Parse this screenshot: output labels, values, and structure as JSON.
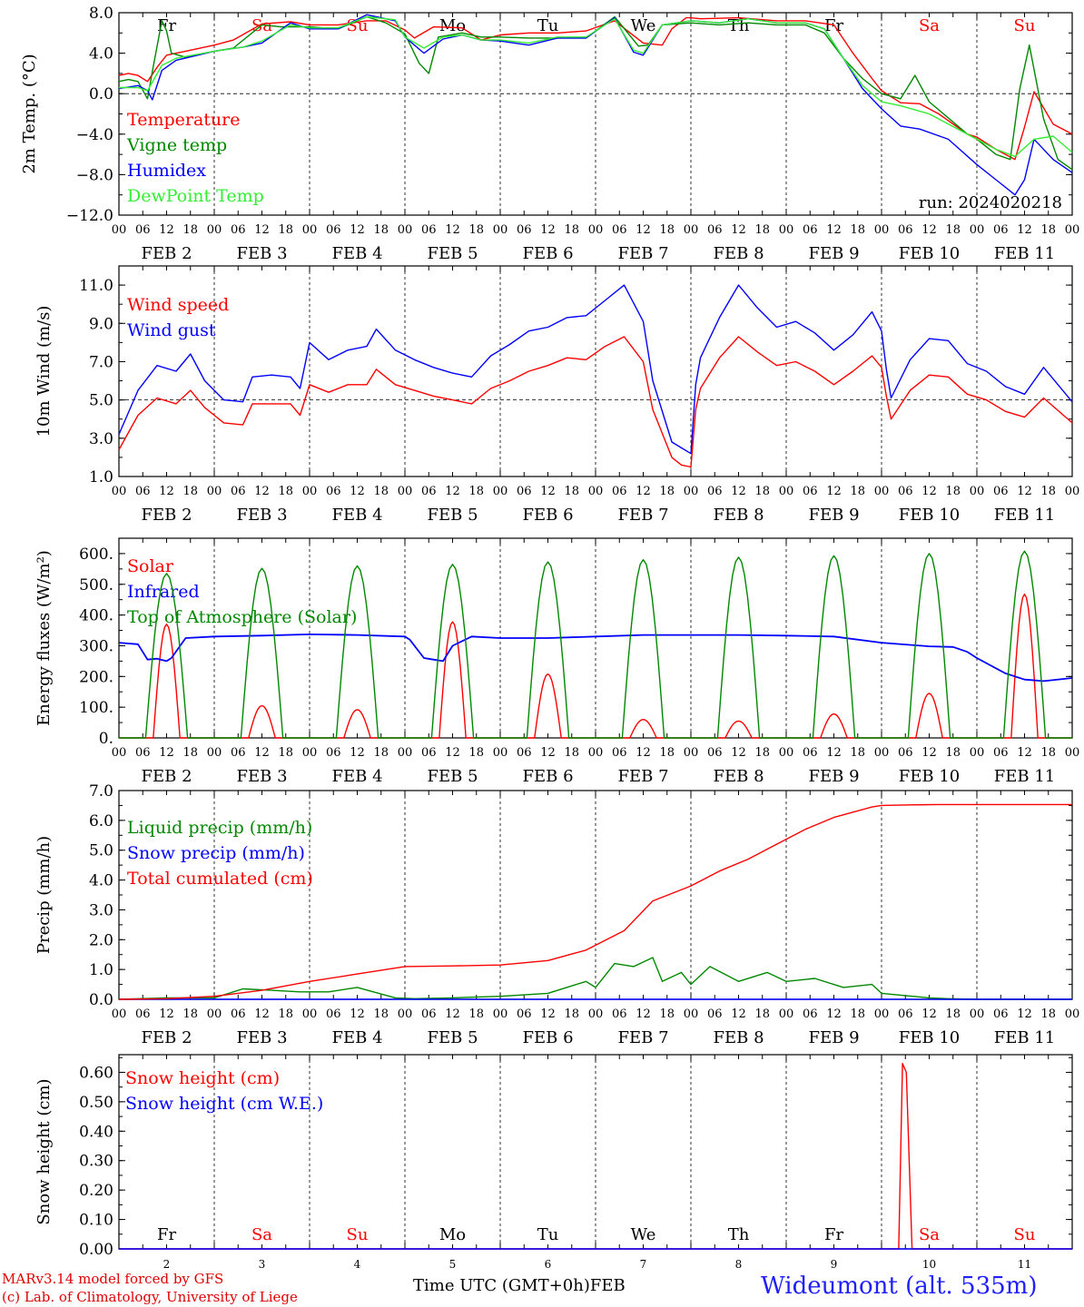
{
  "meta": {
    "run": "run: 2024020218",
    "x_axis_title": "Time UTC (GMT+0h)",
    "month_label": "FEB",
    "credit_line1": "MARv3.14 model forced by GFS",
    "credit_line2": "(c) Lab. of Climatology, University of Liege",
    "station": "Wideumont (alt. 535m)",
    "hour_labels": [
      "00",
      "06",
      "12",
      "18"
    ],
    "final_hour_label": "00",
    "date_labels": [
      "FEB  2",
      "FEB  3",
      "FEB  4",
      "FEB  5",
      "FEB  6",
      "FEB  7",
      "FEB  8",
      "FEB  9",
      "FEB 10",
      "FEB 11"
    ],
    "day_numbers": [
      "2",
      "3",
      "4",
      "5",
      "6",
      "7",
      "8",
      "9",
      "10",
      "11"
    ],
    "weekdays": [
      "Fr",
      "Sa",
      "Su",
      "Mo",
      "Tu",
      "We",
      "Th",
      "Fr",
      "Sa",
      "Su"
    ],
    "weekday_colors": [
      "#000000",
      "#ff0000",
      "#ff0000",
      "#000000",
      "#000000",
      "#000000",
      "#000000",
      "#000000",
      "#ff0000",
      "#ff0000"
    ]
  },
  "chart_data": [
    {
      "type": "line",
      "ylabel": "2m Temp. (°C)",
      "ylim": [
        -12,
        8
      ],
      "yticks": [
        "8.0",
        "4.0",
        "0.0",
        "−4.0",
        "−8.0",
        "−12.0"
      ],
      "ytick_values": [
        8,
        4,
        0,
        -4,
        -8,
        -12
      ],
      "reference_line": 0,
      "x_days": [
        0,
        10
      ],
      "series": [
        {
          "name": "Temperature",
          "color": "#ff0000",
          "x": [
            0,
            0.1,
            0.2,
            0.3,
            0.4,
            0.5,
            0.7,
            1,
            1.2,
            1.5,
            1.8,
            2,
            2.3,
            2.6,
            2.8,
            3,
            3.1,
            3.3,
            3.6,
            3.8,
            4,
            4.3,
            4.6,
            4.9,
            5.2,
            5.5,
            5.7,
            5.8,
            5.95,
            6,
            6.1,
            6.5,
            6.9,
            7.2,
            7.5,
            7.7,
            7.9,
            8,
            8.2,
            8.4,
            8.6,
            8.9,
            9,
            9.2,
            9.4,
            9.5,
            9.6,
            9.8,
            10
          ],
          "y": [
            1.8,
            2,
            1.8,
            1.2,
            2.6,
            3.8,
            4.2,
            4.8,
            5.3,
            6.9,
            7.1,
            6.8,
            6.8,
            7.2,
            7.2,
            6.3,
            5.5,
            6.6,
            6.5,
            5.3,
            5.8,
            6,
            6,
            6.2,
            7.2,
            5,
            4.8,
            6.4,
            7.5,
            7.5,
            7.4,
            7.5,
            7.2,
            7.2,
            6.8,
            4,
            1.5,
            0.3,
            -0.9,
            -1,
            -2,
            -4,
            -4.3,
            -5.5,
            -6.5,
            -3.3,
            0.2,
            -3,
            -4
          ]
        },
        {
          "name": "Vigne temp",
          "color": "#008800",
          "x": [
            0,
            0.1,
            0.2,
            0.3,
            0.35,
            0.45,
            0.5,
            0.55,
            0.7,
            1,
            1.2,
            1.5,
            1.7,
            2,
            2.3,
            2.6,
            2.8,
            3,
            3.15,
            3.25,
            3.35,
            3.6,
            3.8,
            4,
            4.3,
            4.6,
            4.9,
            5.2,
            5.45,
            5.55,
            5.7,
            6,
            6.3,
            6.6,
            6.9,
            7.2,
            7.4,
            7.6,
            7.8,
            8,
            8.2,
            8.35,
            8.5,
            8.65,
            8.9,
            9,
            9.2,
            9.35,
            9.45,
            9.55,
            9.7,
            9.85,
            10
          ],
          "y": [
            1.2,
            1.4,
            1.2,
            -0.5,
            2.2,
            7.2,
            6.2,
            4,
            3.6,
            4.2,
            4.5,
            6.8,
            6.6,
            6.6,
            6.4,
            7.6,
            7,
            5.9,
            3,
            2,
            5.6,
            6,
            5.6,
            5.6,
            5.5,
            5.5,
            5.5,
            7.6,
            4.7,
            4.8,
            6.8,
            7,
            6.8,
            7,
            6.8,
            6.8,
            6,
            3.5,
            1.5,
            0,
            -0.5,
            1.8,
            -0.8,
            -2,
            -4,
            -4.5,
            -6,
            -6.5,
            0.5,
            4.8,
            -2.5,
            -6.5,
            -7.5
          ]
        },
        {
          "name": "Humidex",
          "color": "#0000ff",
          "x": [
            0,
            0.2,
            0.3,
            0.35,
            0.45,
            0.6,
            1,
            1.3,
            1.5,
            1.8,
            2,
            2.3,
            2.6,
            2.9,
            3,
            3.2,
            3.4,
            3.6,
            3.8,
            4,
            4.3,
            4.6,
            4.9,
            5.2,
            5.4,
            5.5,
            5.7,
            6,
            6.3,
            6.6,
            6.9,
            7.2,
            7.4,
            7.6,
            7.8,
            8,
            8.2,
            8.4,
            8.7,
            9,
            9.2,
            9.4,
            9.5,
            9.6,
            9.8,
            10
          ],
          "y": [
            0.5,
            0.8,
            0.3,
            -0.6,
            2.3,
            3.3,
            4.2,
            4.6,
            5,
            7,
            6.4,
            6.4,
            7.8,
            7.2,
            5.6,
            4,
            5.4,
            5.8,
            5.3,
            5.2,
            4.8,
            5.5,
            5.5,
            7.5,
            4.1,
            3.8,
            6.8,
            7.2,
            7,
            7.4,
            7,
            7,
            6.4,
            3.5,
            0.5,
            -1.5,
            -3.2,
            -3.5,
            -4.5,
            -7,
            -8.5,
            -10,
            -8.5,
            -4.5,
            -6.5,
            -7.8
          ]
        },
        {
          "name": "DewPoint Temp",
          "color": "#33ee33",
          "x": [
            0,
            0.2,
            0.3,
            0.45,
            0.6,
            1,
            1.3,
            1.5,
            1.8,
            2,
            2.3,
            2.6,
            2.9,
            3,
            3.2,
            3.4,
            3.6,
            3.8,
            4,
            4.3,
            4.6,
            4.9,
            5.2,
            5.4,
            5.5,
            5.7,
            6,
            6.3,
            6.6,
            6.9,
            7.2,
            7.4,
            7.6,
            7.8,
            8,
            8.2,
            8.5,
            8.8,
            9,
            9.2,
            9.4,
            9.6,
            9.8,
            10
          ],
          "y": [
            0.6,
            0.6,
            0.3,
            2.8,
            3.5,
            4.2,
            4.6,
            5.2,
            6.8,
            6.5,
            6.5,
            7.6,
            7.3,
            5.6,
            4.5,
            5.6,
            5.8,
            5.3,
            5.3,
            5,
            5.6,
            5.6,
            7.4,
            4.3,
            4,
            6.8,
            7.2,
            7,
            7.4,
            7,
            7,
            6.4,
            3.5,
            0.8,
            -0.8,
            -1.2,
            -2,
            -3.5,
            -4.5,
            -5.5,
            -6.2,
            -4.5,
            -4.2,
            -5.8
          ]
        }
      ]
    },
    {
      "type": "line",
      "ylabel": "10m Wind (m/s)",
      "ylim": [
        1,
        12
      ],
      "yticks": [
        "11.0",
        "9.0",
        "7.0",
        "5.0",
        "3.0",
        "1.0"
      ],
      "ytick_values": [
        11,
        9,
        7,
        5,
        3,
        1
      ],
      "reference_line": 5,
      "series": [
        {
          "name": "Wind speed",
          "color": "#ff0000",
          "x": [
            0,
            0.2,
            0.4,
            0.6,
            0.75,
            0.9,
            1,
            1.1,
            1.3,
            1.4,
            1.6,
            1.8,
            1.9,
            2,
            2.2,
            2.4,
            2.6,
            2.7,
            2.9,
            3.1,
            3.3,
            3.5,
            3.7,
            3.9,
            4.1,
            4.3,
            4.5,
            4.7,
            4.9,
            5.1,
            5.3,
            5.5,
            5.6,
            5.8,
            5.9,
            6,
            6.05,
            6.1,
            6.3,
            6.5,
            6.7,
            6.9,
            7.1,
            7.3,
            7.5,
            7.7,
            7.9,
            8,
            8.05,
            8.1,
            8.3,
            8.5,
            8.7,
            8.9,
            9.1,
            9.3,
            9.5,
            9.7,
            10
          ],
          "y": [
            2.4,
            4.2,
            5.1,
            4.8,
            5.5,
            4.6,
            4.2,
            3.8,
            3.7,
            4.8,
            4.8,
            4.8,
            4.2,
            5.8,
            5.4,
            5.8,
            5.8,
            6.6,
            5.8,
            5.5,
            5.2,
            5,
            4.8,
            5.6,
            6,
            6.5,
            6.8,
            7.2,
            7.1,
            7.8,
            8.3,
            7,
            4.5,
            2,
            1.6,
            1.5,
            4.5,
            5.6,
            7.2,
            8.3,
            7.5,
            6.8,
            7,
            6.5,
            5.8,
            6.5,
            7.3,
            6.7,
            5.2,
            4,
            5.5,
            6.3,
            6.2,
            5.3,
            5,
            4.4,
            4.1,
            5.1,
            3.8
          ]
        },
        {
          "name": "Wind gust",
          "color": "#0000ff",
          "x": [
            0,
            0.2,
            0.4,
            0.6,
            0.75,
            0.9,
            1,
            1.1,
            1.3,
            1.4,
            1.6,
            1.8,
            1.9,
            2,
            2.2,
            2.4,
            2.6,
            2.7,
            2.9,
            3.1,
            3.3,
            3.5,
            3.7,
            3.9,
            4.1,
            4.3,
            4.5,
            4.7,
            4.9,
            5.1,
            5.3,
            5.5,
            5.6,
            5.8,
            5.9,
            6,
            6.05,
            6.1,
            6.3,
            6.5,
            6.7,
            6.9,
            7.1,
            7.3,
            7.5,
            7.7,
            7.9,
            8,
            8.05,
            8.1,
            8.3,
            8.5,
            8.7,
            8.9,
            9.1,
            9.3,
            9.5,
            9.7,
            10
          ],
          "y": [
            3.2,
            5.5,
            6.8,
            6.5,
            7.4,
            6,
            5.5,
            5,
            4.9,
            6.2,
            6.3,
            6.2,
            5.6,
            8,
            7.1,
            7.6,
            7.8,
            8.7,
            7.6,
            7.1,
            6.7,
            6.4,
            6.2,
            7.3,
            7.9,
            8.6,
            8.8,
            9.3,
            9.4,
            10.2,
            11,
            9.1,
            6,
            2.8,
            2.5,
            2.2,
            5.8,
            7.2,
            9.3,
            11,
            9.8,
            8.8,
            9.1,
            8.5,
            7.6,
            8.4,
            9.6,
            8.6,
            6.6,
            5.1,
            7.1,
            8.2,
            8.1,
            6.9,
            6.5,
            5.7,
            5.3,
            6.7,
            4.9
          ]
        }
      ]
    },
    {
      "type": "line",
      "ylabel": "Energy fluxes (W/m²)",
      "ylim": [
        0,
        650
      ],
      "yticks": [
        "600.",
        "500.",
        "400.",
        "300.",
        "200.",
        "100.",
        "0."
      ],
      "ytick_values": [
        600,
        500,
        400,
        300,
        200,
        100,
        0
      ],
      "series": [
        {
          "name": "Solar",
          "color": "#ff0000",
          "shape": "daily-peaks",
          "peaks": [
            370,
            105,
            92,
            378,
            208,
            60,
            55,
            78,
            145,
            468
          ]
        },
        {
          "name": "Infrared",
          "color": "#0000ff",
          "x": [
            0,
            0.2,
            0.3,
            0.4,
            0.5,
            0.55,
            0.7,
            1,
            1.5,
            2,
            2.5,
            3,
            3.05,
            3.2,
            3.3,
            3.4,
            3.5,
            3.7,
            4,
            4.5,
            5,
            5.5,
            6,
            6.5,
            7,
            7.5,
            8,
            8.5,
            8.75,
            8.9,
            9,
            9.3,
            9.5,
            9.7,
            10
          ],
          "y": [
            310,
            305,
            255,
            258,
            250,
            260,
            325,
            330,
            333,
            337,
            335,
            330,
            320,
            260,
            255,
            250,
            300,
            330,
            325,
            325,
            330,
            335,
            335,
            335,
            333,
            330,
            310,
            298,
            296,
            280,
            260,
            210,
            190,
            185,
            195
          ]
        },
        {
          "name": "Top of Atmosphere (Solar)",
          "color": "#008800",
          "shape": "daily-peaks",
          "peaks": [
            535,
            552,
            560,
            565,
            573,
            580,
            588,
            593,
            600,
            608
          ]
        }
      ]
    },
    {
      "type": "line",
      "ylabel": "Precip (mm/h)",
      "ylim": [
        0,
        7
      ],
      "yticks": [
        "7.0",
        "6.0",
        "5.0",
        "4.0",
        "3.0",
        "2.0",
        "1.0",
        "0.0"
      ],
      "ytick_values": [
        7,
        6,
        5,
        4,
        3,
        2,
        1,
        0
      ],
      "series": [
        {
          "name": "Liquid precip (mm/h)",
          "color": "#008800",
          "x": [
            0,
            0.5,
            1,
            1.3,
            1.6,
            1.9,
            2.2,
            2.5,
            2.9,
            3.1,
            3.5,
            4,
            4.5,
            4.9,
            5,
            5.2,
            5.4,
            5.6,
            5.7,
            5.9,
            6,
            6.2,
            6.5,
            6.8,
            7,
            7.3,
            7.6,
            7.9,
            8,
            8.4,
            8.5,
            8.7,
            9,
            9.5,
            10
          ],
          "y": [
            0,
            0.05,
            0.05,
            0.35,
            0.3,
            0.25,
            0.25,
            0.4,
            0.05,
            0.02,
            0.05,
            0.1,
            0.2,
            0.6,
            0.4,
            1.2,
            1.1,
            1.4,
            0.6,
            0.9,
            0.5,
            1.1,
            0.6,
            0.9,
            0.6,
            0.7,
            0.4,
            0.5,
            0.2,
            0.08,
            0.05,
            0.02,
            0,
            0,
            0
          ]
        },
        {
          "name": "Snow precip (mm/h)",
          "color": "#0000ff",
          "x": [
            0,
            10
          ],
          "y": [
            0,
            0
          ]
        },
        {
          "name": "Total cumulated (cm)",
          "color": "#ff0000",
          "x": [
            0,
            0.5,
            1,
            1.5,
            2,
            2.5,
            3,
            3.5,
            4,
            4.5,
            4.9,
            5.3,
            5.6,
            6,
            6.3,
            6.6,
            6.9,
            7.2,
            7.5,
            7.9,
            8,
            8.3,
            8.6,
            9,
            10
          ],
          "y": [
            0,
            0.02,
            0.1,
            0.3,
            0.6,
            0.85,
            1.1,
            1.12,
            1.15,
            1.3,
            1.65,
            2.3,
            3.3,
            3.8,
            4.3,
            4.7,
            5.2,
            5.7,
            6.1,
            6.45,
            6.5,
            6.52,
            6.53,
            6.53,
            6.53
          ]
        }
      ]
    },
    {
      "type": "line",
      "ylabel": "Snow height (cm)",
      "ylim": [
        0,
        0.66
      ],
      "yticks": [
        "0.60",
        "0.50",
        "0.40",
        "0.30",
        "0.20",
        "0.10",
        "0.00"
      ],
      "ytick_values": [
        0.6,
        0.5,
        0.4,
        0.3,
        0.2,
        0.1,
        0
      ],
      "series": [
        {
          "name": "Snow height (cm)",
          "color": "#ff0000",
          "x": [
            0,
            8.18,
            8.22,
            8.26,
            8.32,
            8.36,
            10
          ],
          "y": [
            0,
            0,
            0.63,
            0.6,
            0,
            0,
            0
          ]
        },
        {
          "name": "Snow height (cm W.E.)",
          "color": "#0000ff",
          "x": [
            0,
            10
          ],
          "y": [
            0,
            0
          ]
        }
      ]
    }
  ]
}
